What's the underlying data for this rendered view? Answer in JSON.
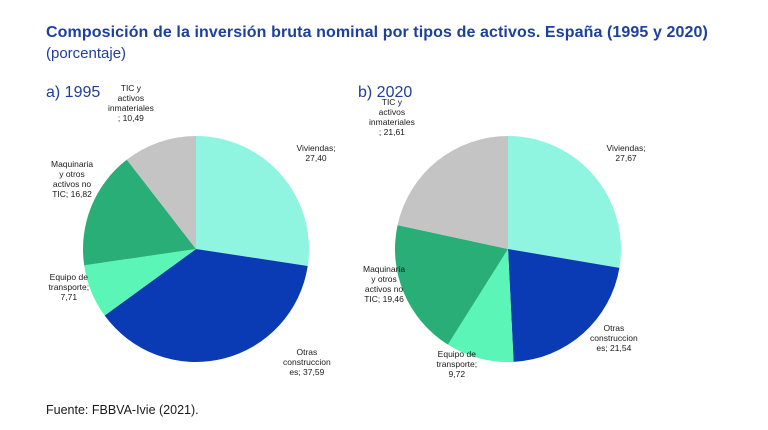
{
  "title": "Composición de la inversión bruta nominal por tipos de activos. España (1995 y 2020)",
  "subtitle": "(porcentaje)",
  "source": "Fuente: FBBVA-Ivie (2021).",
  "colors": {
    "title": "#1d3f9e",
    "viviendas": "#8ff5e1",
    "otras": "#0a3bb5",
    "equipo": "#5cf5b8",
    "maquinaria": "#2aae78",
    "tic": "#c4c4c4"
  },
  "chart_data": [
    {
      "type": "pie",
      "title": "a) 1995",
      "start": "12 o'clock, clockwise",
      "slices": [
        {
          "key": "viviendas",
          "lines": [
            "Viviendas;",
            "27,40"
          ],
          "value": 27.4
        },
        {
          "key": "otras",
          "lines": [
            "Otras",
            "construccion",
            "es; 37,59"
          ],
          "value": 37.59
        },
        {
          "key": "equipo",
          "lines": [
            "Equipo de",
            "transporte;",
            "7,71"
          ],
          "value": 7.71
        },
        {
          "key": "maquinaria",
          "lines": [
            "Maquinaria",
            "y otros",
            "activos no",
            "TIC; 16,82"
          ],
          "value": 16.82
        },
        {
          "key": "tic",
          "lines": [
            "TIC y",
            "activos",
            "inmateriales",
            "; 10,49"
          ],
          "value": 10.49
        }
      ]
    },
    {
      "type": "pie",
      "title": "b) 2020",
      "start": "12 o'clock, clockwise",
      "slices": [
        {
          "key": "viviendas",
          "lines": [
            "Viviendas;",
            "27,67"
          ],
          "value": 27.67
        },
        {
          "key": "otras",
          "lines": [
            "Otras",
            "construccion",
            "es; 21,54"
          ],
          "value": 21.54
        },
        {
          "key": "equipo",
          "lines": [
            "Equipo de",
            "transporte;",
            "9,72"
          ],
          "value": 9.72
        },
        {
          "key": "maquinaria",
          "lines": [
            "Maquinaria",
            "y otros",
            "activos no",
            "TIC; 19,46"
          ],
          "value": 19.46
        },
        {
          "key": "tic",
          "lines": [
            "TIC y",
            "activos",
            "inmateriales",
            "; 21,61"
          ],
          "value": 21.61
        }
      ]
    }
  ]
}
